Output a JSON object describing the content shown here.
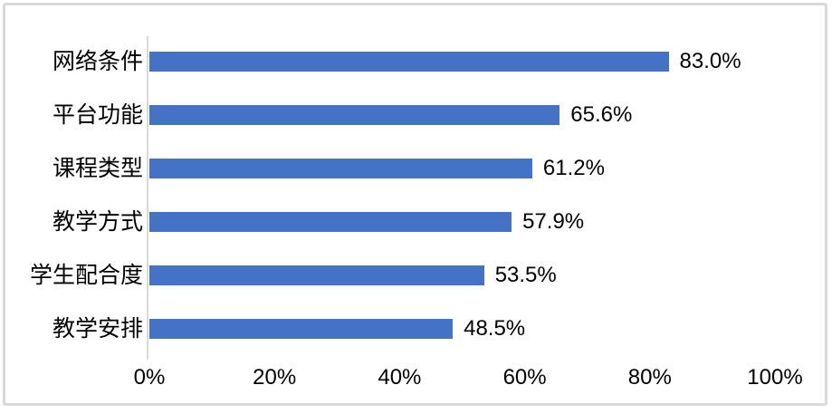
{
  "chart_data": {
    "type": "bar",
    "orientation": "horizontal",
    "title": "",
    "categories": [
      "网络条件",
      "平台功能",
      "课程类型",
      "教学方式",
      "学生配合度",
      "教学安排"
    ],
    "values": [
      83.0,
      65.6,
      61.2,
      57.9,
      53.5,
      48.5
    ],
    "value_labels": [
      "83.0%",
      "65.6%",
      "61.2%",
      "57.9%",
      "53.5%",
      "48.5%"
    ],
    "x_axis": {
      "ticks": [
        "0%",
        "20%",
        "40%",
        "60%",
        "80%",
        "100%"
      ],
      "min": 0,
      "max": 100
    },
    "grid": false,
    "legend_position": "none",
    "colors": {
      "bar": "#4472C4",
      "axis_line": "#D9D9D9",
      "frame_border": "#D9D9D9",
      "text": "#000000",
      "background": "#FFFFFF"
    }
  }
}
